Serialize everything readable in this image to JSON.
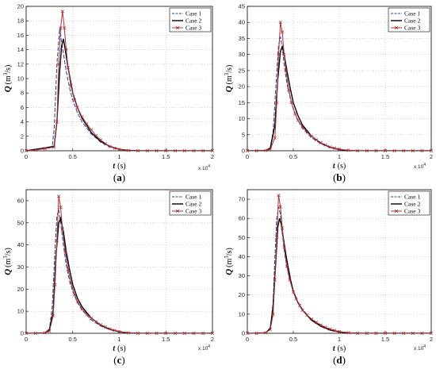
{
  "chart_data": [
    {
      "panel": "(a)",
      "caption_open": "(",
      "caption_letter": "a",
      "caption_close": ")",
      "type": "line",
      "xlabel": "t",
      "xunit": "(s)",
      "ylabel_q": "Q",
      "ylabel_unit": "(m",
      "ylabel_sup": "3",
      "ylabel_tail": "/s)",
      "x_multiplier": "x 10",
      "x_multiplier_exp": "4",
      "xlim": [
        0,
        2
      ],
      "ylim": [
        0,
        20
      ],
      "xticks": [
        "0",
        "0.5",
        "1",
        "1.5",
        "2"
      ],
      "yticks": [
        "0",
        "2",
        "4",
        "6",
        "8",
        "10",
        "12",
        "14",
        "16",
        "18",
        "20"
      ],
      "ytick_values": [
        0,
        2,
        4,
        6,
        8,
        10,
        12,
        14,
        16,
        18,
        20
      ],
      "legend_position": "top-right",
      "series": [
        {
          "name": "Case 1",
          "color": "#1f3fb0",
          "marker": "none",
          "dash": "5,2",
          "x": [
            0,
            0.1,
            0.2,
            0.28,
            0.3,
            0.33,
            0.36,
            0.38,
            0.4,
            0.43,
            0.47,
            0.5,
            0.55,
            0.6,
            0.7,
            0.8,
            0.9,
            1.0,
            1.1,
            1.2,
            1.5,
            2.0
          ],
          "y": [
            0,
            0.2,
            0.4,
            0.6,
            3,
            12,
            17,
            15,
            13.5,
            11,
            8.5,
            7,
            5.3,
            4.0,
            2.3,
            1.2,
            0.5,
            0.2,
            0.05,
            0,
            0,
            0
          ]
        },
        {
          "name": "Case 2",
          "color": "#000000",
          "marker": "none",
          "dash": "",
          "x": [
            0,
            0.1,
            0.2,
            0.3,
            0.33,
            0.36,
            0.38,
            0.4,
            0.42,
            0.45,
            0.5,
            0.55,
            0.6,
            0.7,
            0.8,
            0.9,
            1.0,
            1.1,
            1.2,
            1.5,
            2.0
          ],
          "y": [
            0,
            0.2,
            0.4,
            0.6,
            4,
            11,
            14.5,
            15.5,
            14,
            11.5,
            8,
            6,
            4.5,
            2.5,
            1.3,
            0.6,
            0.2,
            0.05,
            0,
            0,
            0
          ]
        },
        {
          "name": "Case 3",
          "color": "#b03030",
          "marker": "x",
          "dash": "",
          "x": [
            0,
            0.1,
            0.2,
            0.3,
            0.33,
            0.35,
            0.37,
            0.39,
            0.41,
            0.43,
            0.45,
            0.48,
            0.52,
            0.55,
            0.6,
            0.65,
            0.7,
            0.75,
            0.8,
            0.85,
            0.9,
            0.95,
            1.0,
            1.1,
            1.2,
            1.3,
            1.4,
            1.5,
            1.6,
            1.7,
            1.8,
            1.9,
            2.0
          ],
          "y": [
            0,
            0.1,
            0.3,
            0.5,
            4,
            12,
            17,
            19.3,
            17,
            14,
            11.5,
            9,
            7,
            6,
            4.7,
            3.7,
            2.9,
            2.1,
            1.5,
            1.0,
            0.6,
            0.35,
            0.2,
            0.05,
            0,
            0,
            0,
            0,
            0,
            0,
            0,
            0,
            0
          ]
        }
      ]
    },
    {
      "panel": "(b)",
      "caption_open": "(",
      "caption_letter": "b",
      "caption_close": ")",
      "type": "line",
      "xlabel": "t",
      "xunit": "(s)",
      "ylabel_q": "Q",
      "ylabel_unit": "(m",
      "ylabel_sup": "3",
      "ylabel_tail": "/s)",
      "x_multiplier": "x 10",
      "x_multiplier_exp": "4",
      "xlim": [
        0,
        2
      ],
      "ylim": [
        0,
        45
      ],
      "xticks": [
        "0",
        "0.5",
        "1",
        "1.5",
        "2"
      ],
      "yticks": [
        "0",
        "5",
        "10",
        "15",
        "20",
        "25",
        "30",
        "35",
        "40",
        "45"
      ],
      "ytick_values": [
        0,
        5,
        10,
        15,
        20,
        25,
        30,
        35,
        40,
        45
      ],
      "legend_position": "top-right",
      "series": [
        {
          "name": "Case 1",
          "color": "#1f3fb0",
          "marker": "none",
          "dash": "5,2",
          "x": [
            0,
            0.1,
            0.2,
            0.25,
            0.28,
            0.31,
            0.34,
            0.36,
            0.38,
            0.4,
            0.43,
            0.47,
            0.5,
            0.55,
            0.6,
            0.7,
            0.8,
            0.9,
            1.0,
            1.1,
            1.2,
            1.5,
            2.0
          ],
          "y": [
            0,
            0,
            0.1,
            1,
            6,
            20,
            33,
            35.5,
            32,
            27,
            21,
            16,
            13,
            9.5,
            7,
            4,
            2.2,
            1.0,
            0.4,
            0.1,
            0,
            0,
            0
          ]
        },
        {
          "name": "Case 2",
          "color": "#000000",
          "marker": "none",
          "dash": "",
          "x": [
            0,
            0.1,
            0.2,
            0.25,
            0.3,
            0.33,
            0.36,
            0.38,
            0.4,
            0.43,
            0.47,
            0.5,
            0.55,
            0.6,
            0.7,
            0.8,
            0.9,
            1.0,
            1.1,
            1.2,
            1.5,
            2.0
          ],
          "y": [
            0,
            0,
            0.1,
            0.8,
            8,
            22,
            31,
            32.5,
            30,
            25,
            19,
            15,
            11,
            8,
            4.5,
            2.4,
            1.1,
            0.4,
            0.1,
            0,
            0,
            0
          ]
        },
        {
          "name": "Case 3",
          "color": "#b03030",
          "marker": "x",
          "dash": "",
          "x": [
            0,
            0.1,
            0.2,
            0.25,
            0.3,
            0.32,
            0.34,
            0.36,
            0.38,
            0.4,
            0.42,
            0.45,
            0.48,
            0.52,
            0.55,
            0.6,
            0.65,
            0.7,
            0.75,
            0.8,
            0.85,
            0.9,
            0.95,
            1.0,
            1.1,
            1.2,
            1.3,
            1.4,
            1.5,
            1.6,
            1.7,
            1.8,
            1.9,
            2.0
          ],
          "y": [
            0,
            0,
            0.1,
            0.5,
            4,
            15,
            30,
            40,
            37,
            30,
            25,
            19,
            15,
            11.5,
            9.5,
            7.5,
            5.8,
            4.5,
            3.4,
            2.5,
            1.8,
            1.2,
            0.8,
            0.5,
            0.15,
            0,
            0,
            0,
            0,
            0,
            0,
            0,
            0,
            0
          ]
        }
      ]
    },
    {
      "panel": "(c)",
      "caption_open": "(",
      "caption_letter": "c",
      "caption_close": ")",
      "type": "line",
      "xlabel": "t",
      "xunit": "(s)",
      "ylabel_q": "Q",
      "ylabel_unit": "(m",
      "ylabel_sup": "3",
      "ylabel_tail": "/s)",
      "x_multiplier": "x 10",
      "x_multiplier_exp": "4",
      "xlim": [
        0,
        2
      ],
      "ylim": [
        0,
        65
      ],
      "xticks": [
        "0",
        "0.5",
        "1",
        "1.5",
        "2"
      ],
      "yticks": [
        "0",
        "10",
        "20",
        "30",
        "40",
        "50",
        "60"
      ],
      "ytick_values": [
        0,
        10,
        20,
        30,
        40,
        50,
        60
      ],
      "legend_position": "top-right",
      "series": [
        {
          "name": "Case 1",
          "color": "#1f3fb0",
          "marker": "none",
          "dash": "5,2",
          "x": [
            0,
            0.1,
            0.2,
            0.25,
            0.28,
            0.31,
            0.33,
            0.35,
            0.37,
            0.4,
            0.43,
            0.47,
            0.5,
            0.55,
            0.6,
            0.7,
            0.8,
            0.9,
            1.0,
            1.1,
            1.2,
            1.5,
            2.0
          ],
          "y": [
            0,
            0,
            0.2,
            2,
            12,
            38,
            53,
            56,
            50,
            40,
            31,
            23,
            19,
            14,
            10.5,
            6,
            3.3,
            1.6,
            0.6,
            0.2,
            0,
            0,
            0
          ]
        },
        {
          "name": "Case 2",
          "color": "#000000",
          "marker": "none",
          "dash": "",
          "x": [
            0,
            0.1,
            0.2,
            0.25,
            0.29,
            0.32,
            0.35,
            0.37,
            0.4,
            0.43,
            0.47,
            0.5,
            0.55,
            0.6,
            0.7,
            0.8,
            0.9,
            1.0,
            1.1,
            1.2,
            1.5,
            2.0
          ],
          "y": [
            0,
            0,
            0.2,
            1.5,
            10,
            35,
            50,
            52,
            46,
            37,
            28,
            22,
            16,
            12,
            6.8,
            3.7,
            1.8,
            0.7,
            0.2,
            0,
            0,
            0
          ]
        },
        {
          "name": "Case 3",
          "color": "#b03030",
          "marker": "x",
          "dash": "",
          "x": [
            0,
            0.1,
            0.2,
            0.25,
            0.29,
            0.31,
            0.33,
            0.35,
            0.37,
            0.39,
            0.42,
            0.45,
            0.48,
            0.52,
            0.55,
            0.6,
            0.65,
            0.7,
            0.75,
            0.8,
            0.85,
            0.9,
            0.95,
            1.0,
            1.1,
            1.2,
            1.3,
            1.4,
            1.5,
            1.6,
            1.7,
            1.8,
            1.9,
            2.0
          ],
          "y": [
            0,
            0,
            0.2,
            1,
            8,
            22,
            42,
            62,
            57,
            47,
            37,
            29,
            23,
            17.5,
            14.5,
            11,
            8.7,
            6.8,
            5.2,
            3.9,
            2.9,
            2.0,
            1.3,
            0.8,
            0.2,
            0,
            0,
            0,
            0,
            0,
            0,
            0,
            0,
            0
          ]
        }
      ]
    },
    {
      "panel": "(d)",
      "caption_open": "(",
      "caption_letter": "d",
      "caption_close": ")",
      "type": "line",
      "xlabel": "t",
      "xunit": "(s)",
      "ylabel_q": "Q",
      "ylabel_unit": "(m",
      "ylabel_sup": "3",
      "ylabel_tail": "/s)",
      "x_multiplier": "x 10",
      "x_multiplier_exp": "4",
      "xlim": [
        0,
        2
      ],
      "ylim": [
        0,
        75
      ],
      "xticks": [
        "0",
        "0.5",
        "1",
        "1.5",
        "2"
      ],
      "yticks": [
        "0",
        "10",
        "20",
        "30",
        "40",
        "50",
        "60",
        "70"
      ],
      "ytick_values": [
        0,
        10,
        20,
        30,
        40,
        50,
        60,
        70
      ],
      "legend_position": "top-right",
      "series": [
        {
          "name": "Case 1",
          "color": "#1f3fb0",
          "marker": "none",
          "dash": "5,2",
          "x": [
            0,
            0.1,
            0.2,
            0.25,
            0.28,
            0.3,
            0.32,
            0.34,
            0.36,
            0.38,
            0.41,
            0.45,
            0.5,
            0.55,
            0.6,
            0.7,
            0.8,
            0.9,
            1.0,
            1.1,
            1.2,
            1.5,
            2.0
          ],
          "y": [
            0,
            0,
            0.3,
            3,
            16,
            40,
            60,
            66,
            62,
            52,
            40,
            30,
            22,
            16.5,
            12.5,
            7,
            3.8,
            1.8,
            0.7,
            0.2,
            0,
            0,
            0
          ]
        },
        {
          "name": "Case 2",
          "color": "#000000",
          "marker": "none",
          "dash": "",
          "x": [
            0,
            0.1,
            0.2,
            0.25,
            0.28,
            0.31,
            0.33,
            0.35,
            0.37,
            0.4,
            0.43,
            0.47,
            0.5,
            0.55,
            0.6,
            0.7,
            0.8,
            0.9,
            1.0,
            1.1,
            1.2,
            1.5,
            2.0
          ],
          "y": [
            0,
            0,
            0.3,
            2.5,
            14,
            38,
            55,
            60,
            57,
            47,
            38,
            28,
            22,
            16,
            12,
            6.8,
            3.7,
            1.7,
            0.7,
            0.2,
            0,
            0,
            0
          ]
        },
        {
          "name": "Case 3",
          "color": "#b03030",
          "marker": "x",
          "dash": "",
          "x": [
            0,
            0.1,
            0.2,
            0.25,
            0.28,
            0.3,
            0.32,
            0.34,
            0.36,
            0.38,
            0.4,
            0.43,
            0.46,
            0.5,
            0.53,
            0.57,
            0.6,
            0.65,
            0.7,
            0.75,
            0.8,
            0.85,
            0.9,
            0.95,
            1.0,
            1.1,
            1.2,
            1.3,
            1.4,
            1.5,
            1.6,
            1.7,
            1.8,
            1.9,
            2.0
          ],
          "y": [
            0,
            0,
            0.3,
            2,
            10,
            28,
            50,
            72,
            66,
            55,
            45,
            35,
            28,
            21.5,
            18,
            14.5,
            12,
            9.5,
            7.4,
            5.7,
            4.3,
            3.1,
            2.2,
            1.5,
            0.9,
            0.3,
            0,
            0,
            0,
            0,
            0,
            0,
            0,
            0,
            0
          ]
        }
      ]
    }
  ]
}
